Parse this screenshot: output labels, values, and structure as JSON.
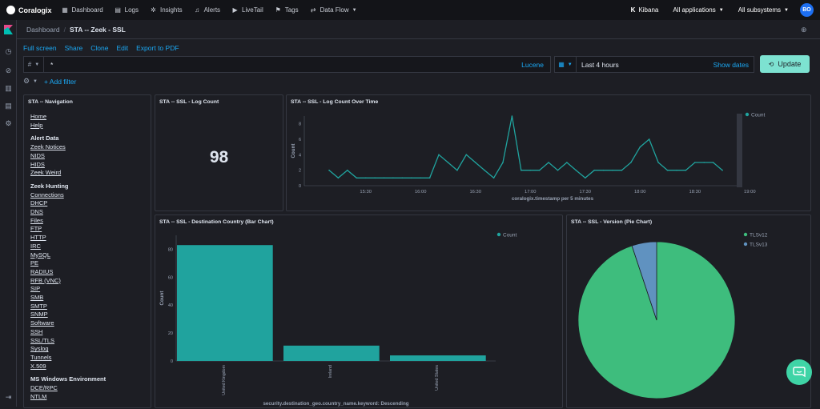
{
  "topbar": {
    "brand": "Coralogix",
    "nav": [
      {
        "label": "Dashboard",
        "icon": "dashboard-icon"
      },
      {
        "label": "Logs",
        "icon": "logs-icon"
      },
      {
        "label": "Insights",
        "icon": "insights-icon"
      },
      {
        "label": "Alerts",
        "icon": "bell-icon"
      },
      {
        "label": "LiveTail",
        "icon": "play-icon"
      },
      {
        "label": "Tags",
        "icon": "tag-icon"
      },
      {
        "label": "Data Flow",
        "icon": "dataflow-icon"
      }
    ],
    "kibana": "Kibana",
    "applications": "All applications",
    "subsystems": "All subsystems",
    "avatar": "BO"
  },
  "breadcrumbs": {
    "root": "Dashboard",
    "current": "STA -- Zeek - SSL"
  },
  "actions": [
    "Full screen",
    "Share",
    "Clone",
    "Edit",
    "Export to PDF"
  ],
  "query": {
    "lang_symbol": "#",
    "text": "*",
    "syntax": "Lucene"
  },
  "time": {
    "range": "Last 4 hours",
    "show_dates": "Show dates",
    "update": "Update"
  },
  "filters": {
    "add": "+ Add filter"
  },
  "panels": {
    "navigation": {
      "title": "STA -- Navigation",
      "groups": [
        {
          "heading": "",
          "links": [
            "Home",
            "Help"
          ]
        },
        {
          "heading": "Alert Data",
          "links": [
            "Zeek Notices",
            "NIDS",
            "HIDS",
            "Zeek Weird"
          ]
        },
        {
          "heading": "Zeek Hunting",
          "links": [
            "Connections",
            "DHCP",
            "DNS",
            "Files",
            "FTP",
            "HTTP",
            "IRC",
            "MySQL",
            "PE",
            "RADIUS",
            "RFB (VNC)",
            "SIP",
            "SMB",
            "SMTP",
            "SNMP",
            "Software",
            "SSH",
            "SSL/TLS",
            "Syslog",
            "Tunnels",
            "X.509"
          ]
        },
        {
          "heading": "MS Windows Environment",
          "links": [
            "DCE/RPC",
            "NTLM"
          ]
        }
      ]
    },
    "log_count": {
      "title": "STA -- SSL - Log Count",
      "value": "98"
    },
    "over_time": {
      "title": "STA -- SSL - Log Count Over Time"
    },
    "country": {
      "title": "STA -- SSL - Destination Country (Bar Chart)"
    },
    "version": {
      "title": "STA -- SSL - Version (Pie Chart)"
    }
  },
  "chart_data": [
    {
      "type": "line",
      "xlabel": "coralogix.timestamp per 5 minutes",
      "ylabel": "Count",
      "ylim": [
        0,
        9
      ],
      "yticks": [
        0,
        2,
        4,
        6,
        8
      ],
      "xticks": [
        "15:30",
        "16:00",
        "16:30",
        "17:00",
        "17:30",
        "18:00",
        "18:30",
        "19:00"
      ],
      "x_start": "15:10",
      "x_step_minutes": 5,
      "legend_position": "top-right",
      "color": "#20a39e",
      "series": [
        {
          "name": "Count",
          "values": [
            2,
            1,
            2,
            1,
            1,
            1,
            1,
            1,
            1,
            1,
            1,
            1,
            4,
            3,
            2,
            4,
            3,
            2,
            1,
            3,
            9,
            2,
            2,
            2,
            3,
            2,
            3,
            2,
            1,
            2,
            2,
            2,
            2,
            3,
            5,
            6,
            3,
            2,
            2,
            2,
            3,
            3,
            3,
            2
          ]
        }
      ]
    },
    {
      "type": "bar",
      "xlabel": "security.destination_geo.country_name.keyword: Descending",
      "ylabel": "Count",
      "ylim": [
        0,
        90
      ],
      "yticks": [
        0,
        20,
        40,
        60,
        80
      ],
      "legend_position": "top-right",
      "color": "#20a39e",
      "categories": [
        "United Kingdom",
        "Ireland",
        "United States"
      ],
      "series": [
        {
          "name": "Count",
          "values": [
            83,
            11,
            4
          ]
        }
      ]
    },
    {
      "type": "pie",
      "legend_position": "top-right",
      "slices": [
        {
          "label": "TLSv12",
          "value": 93,
          "color": "#3ebd7d"
        },
        {
          "label": "TLSv13",
          "value": 5,
          "color": "#6092c0"
        }
      ]
    }
  ]
}
